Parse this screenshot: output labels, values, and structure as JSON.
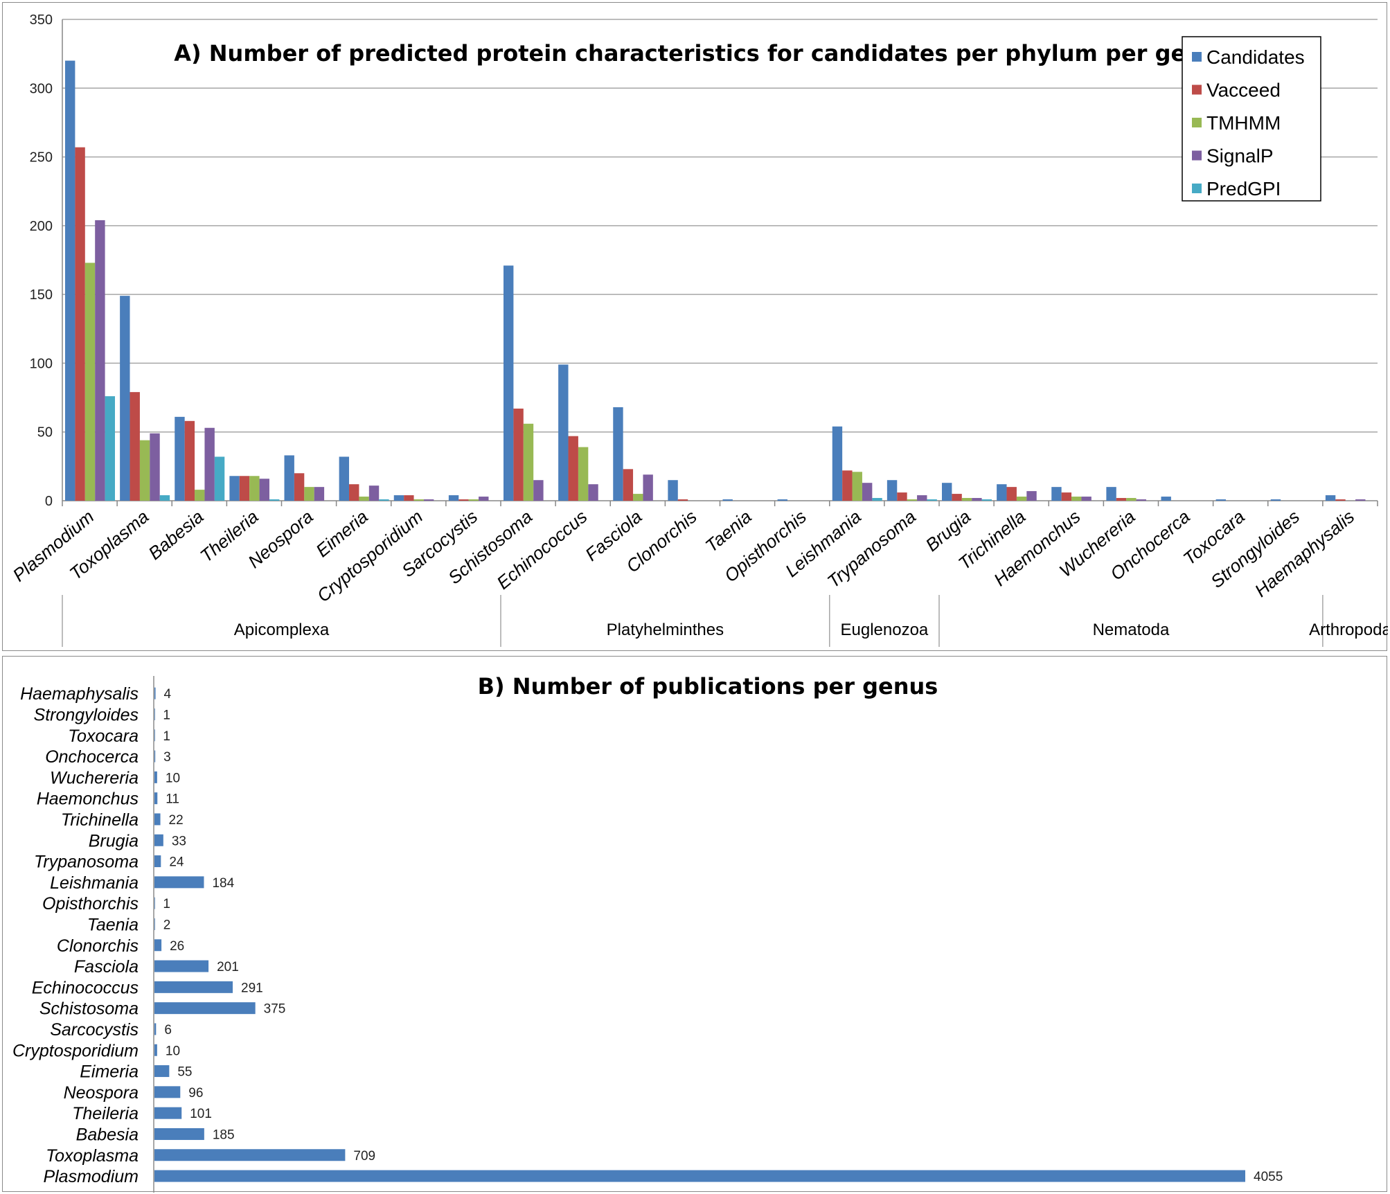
{
  "chart_data": [
    {
      "type": "bar",
      "title": "A) Number of predicted protein characteristics for candidates per phylum per genus",
      "ylim": [
        0,
        350
      ],
      "yticks": [
        0,
        50,
        100,
        150,
        200,
        250,
        300,
        350
      ],
      "categories": [
        "Plasmodium",
        "Toxoplasma",
        "Babesia",
        "Theileria",
        "Neospora",
        "Eimeria",
        "Cryptosporidium",
        "Sarcocystis",
        "Schistosoma",
        "Echinococcus",
        "Fasciola",
        "Clonorchis",
        "Taenia",
        "Opisthorchis",
        "Leishmania",
        "Trypanosoma",
        "Brugia",
        "Trichinella",
        "Haemonchus",
        "Wuchereria",
        "Onchocerca",
        "Toxocara",
        "Strongyloides",
        "Haemaphysalis"
      ],
      "series": [
        {
          "name": "Candidates",
          "color": "#4a7ebb",
          "values": [
            320,
            149,
            61,
            18,
            33,
            32,
            4,
            4,
            171,
            99,
            68,
            15,
            1,
            1,
            54,
            15,
            13,
            12,
            10,
            10,
            3,
            1,
            1,
            4
          ]
        },
        {
          "name": "Vacceed",
          "color": "#be4b48",
          "values": [
            257,
            79,
            58,
            18,
            20,
            12,
            4,
            1,
            67,
            47,
            23,
            1,
            0,
            0,
            22,
            6,
            5,
            10,
            6,
            2,
            0,
            0,
            0,
            1
          ]
        },
        {
          "name": "TMHMM",
          "color": "#98b954",
          "values": [
            173,
            44,
            8,
            18,
            10,
            3,
            1,
            1,
            56,
            39,
            5,
            0,
            0,
            0,
            21,
            1,
            2,
            3,
            3,
            2,
            0,
            0,
            0,
            0
          ]
        },
        {
          "name": "SignalP",
          "color": "#7d5fa0",
          "values": [
            204,
            49,
            53,
            16,
            10,
            11,
            1,
            3,
            15,
            12,
            19,
            0,
            0,
            0,
            13,
            4,
            2,
            7,
            3,
            1,
            0,
            0,
            0,
            1
          ]
        },
        {
          "name": "PredGPI",
          "color": "#46aac5",
          "values": [
            76,
            4,
            32,
            1,
            0,
            1,
            0,
            0,
            0,
            0,
            0,
            0,
            0,
            0,
            2,
            1,
            1,
            0,
            0,
            0,
            0,
            0,
            0,
            0
          ]
        }
      ],
      "groups": [
        {
          "name": "Apicomplexa",
          "from": 0,
          "to": 7
        },
        {
          "name": "Platyhelminthes",
          "from": 8,
          "to": 13
        },
        {
          "name": "Euglenozoa",
          "from": 14,
          "to": 15
        },
        {
          "name": "Nematoda",
          "from": 16,
          "to": 22
        },
        {
          "name": "Arthropoda",
          "from": 23,
          "to": 23
        }
      ],
      "legend": "top-right"
    },
    {
      "type": "bar",
      "orientation": "horizontal",
      "title": "B) Number of publications per genus",
      "color": "#4a7ebb",
      "categories": [
        "Haemaphysalis",
        "Strongyloides",
        "Toxocara",
        "Onchocerca",
        "Wuchereria",
        "Haemonchus",
        "Trichinella",
        "Brugia",
        "Trypanosoma",
        "Leishmania",
        "Opisthorchis",
        "Taenia",
        "Clonorchis",
        "Fasciola",
        "Echinococcus",
        "Schistosoma",
        "Sarcocystis",
        "Cryptosporidium",
        "Eimeria",
        "Neospora",
        "Theileria",
        "Babesia",
        "Toxoplasma",
        "Plasmodium"
      ],
      "values": [
        4,
        1,
        1,
        3,
        10,
        11,
        22,
        33,
        24,
        184,
        1,
        2,
        26,
        201,
        291,
        375,
        6,
        10,
        55,
        96,
        101,
        185,
        709,
        4055
      ]
    }
  ]
}
